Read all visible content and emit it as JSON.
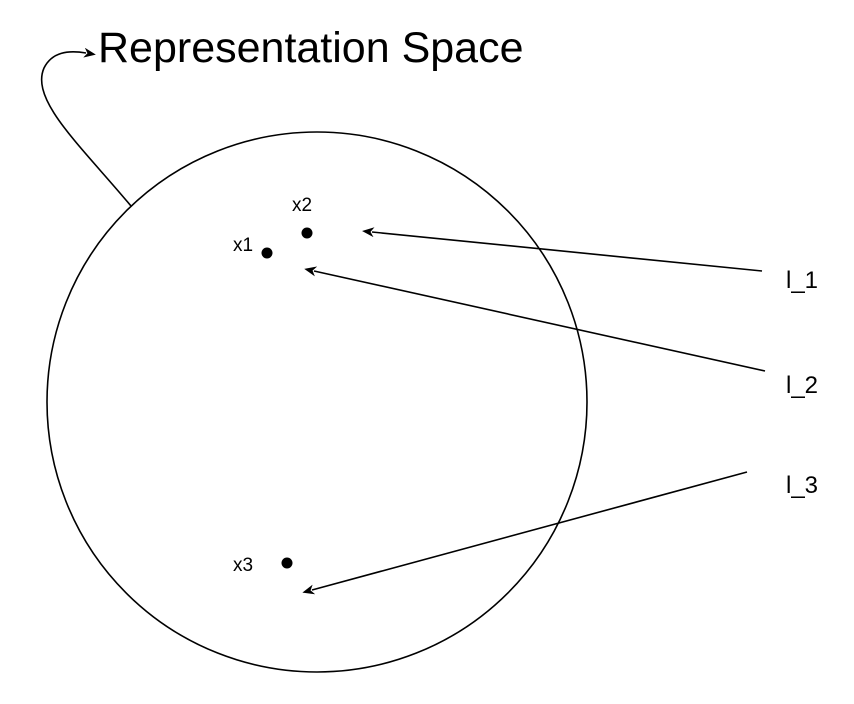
{
  "title": "Representation Space",
  "points": [
    {
      "label": "x1"
    },
    {
      "label": "x2"
    },
    {
      "label": "x3"
    }
  ],
  "labels": [
    {
      "text": "l_1"
    },
    {
      "text": "l_2"
    },
    {
      "text": "l_3"
    }
  ],
  "colors": {
    "stroke": "#000000",
    "background": "#ffffff"
  }
}
